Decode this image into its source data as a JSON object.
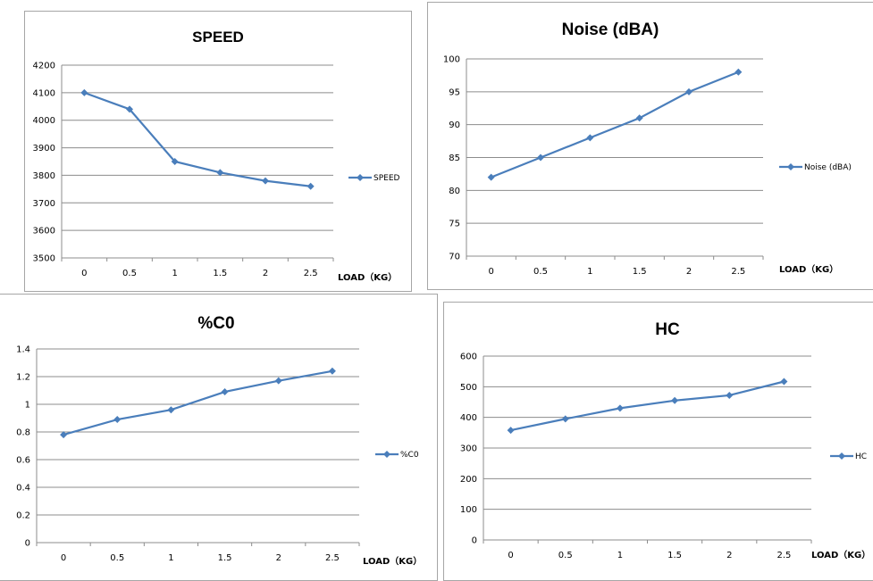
{
  "chart_data": [
    {
      "type": "line",
      "title": "SPEED",
      "categories": [
        "0",
        "0.5",
        "1",
        "1.5",
        "2",
        "2.5"
      ],
      "series": [
        {
          "name": "SPEED",
          "values": [
            4100,
            4040,
            3850,
            3810,
            3780,
            3760
          ]
        }
      ],
      "xlabel": "LOAD（KG）",
      "ylabel": "",
      "ylim": [
        3500,
        4200
      ],
      "yticks": [
        "3500",
        "3600",
        "3700",
        "3800",
        "3900",
        "4000",
        "4100",
        "4200"
      ],
      "grid": true,
      "legend": "right",
      "color": "#4a7ebb"
    },
    {
      "type": "line",
      "title": "Noise (dBA)",
      "categories": [
        "0",
        "0.5",
        "1",
        "1.5",
        "2",
        "2.5"
      ],
      "series": [
        {
          "name": "Noise (dBA)",
          "values": [
            82,
            85,
            88,
            91,
            95,
            98
          ]
        }
      ],
      "xlabel": "LOAD（KG）",
      "ylabel": "",
      "ylim": [
        70,
        100
      ],
      "yticks": [
        "70",
        "75",
        "80",
        "85",
        "90",
        "95",
        "100"
      ],
      "grid": true,
      "legend": "right",
      "color": "#4a7ebb"
    },
    {
      "type": "line",
      "title": "%C0",
      "categories": [
        "0",
        "0.5",
        "1",
        "1.5",
        "2",
        "2.5"
      ],
      "series": [
        {
          "name": "%C0",
          "values": [
            0.78,
            0.89,
            0.96,
            1.09,
            1.17,
            1.24
          ]
        }
      ],
      "xlabel": "LOAD（KG）",
      "ylabel": "",
      "ylim": [
        0,
        1.4
      ],
      "yticks": [
        "0",
        "0.2",
        "0.4",
        "0.6",
        "0.8",
        "1",
        "1.2",
        "1.4"
      ],
      "grid": true,
      "legend": "right",
      "color": "#4a7ebb"
    },
    {
      "type": "line",
      "title": "HC",
      "categories": [
        "0",
        "0.5",
        "1",
        "1.5",
        "2",
        "2.5"
      ],
      "series": [
        {
          "name": "HC",
          "values": [
            358,
            395,
            430,
            455,
            472,
            517
          ]
        }
      ],
      "xlabel": "LOAD（KG）",
      "ylabel": "",
      "ylim": [
        0,
        600
      ],
      "yticks": [
        "0",
        "100",
        "200",
        "300",
        "400",
        "500",
        "600"
      ],
      "grid": true,
      "legend": "right",
      "color": "#4a7ebb"
    }
  ]
}
